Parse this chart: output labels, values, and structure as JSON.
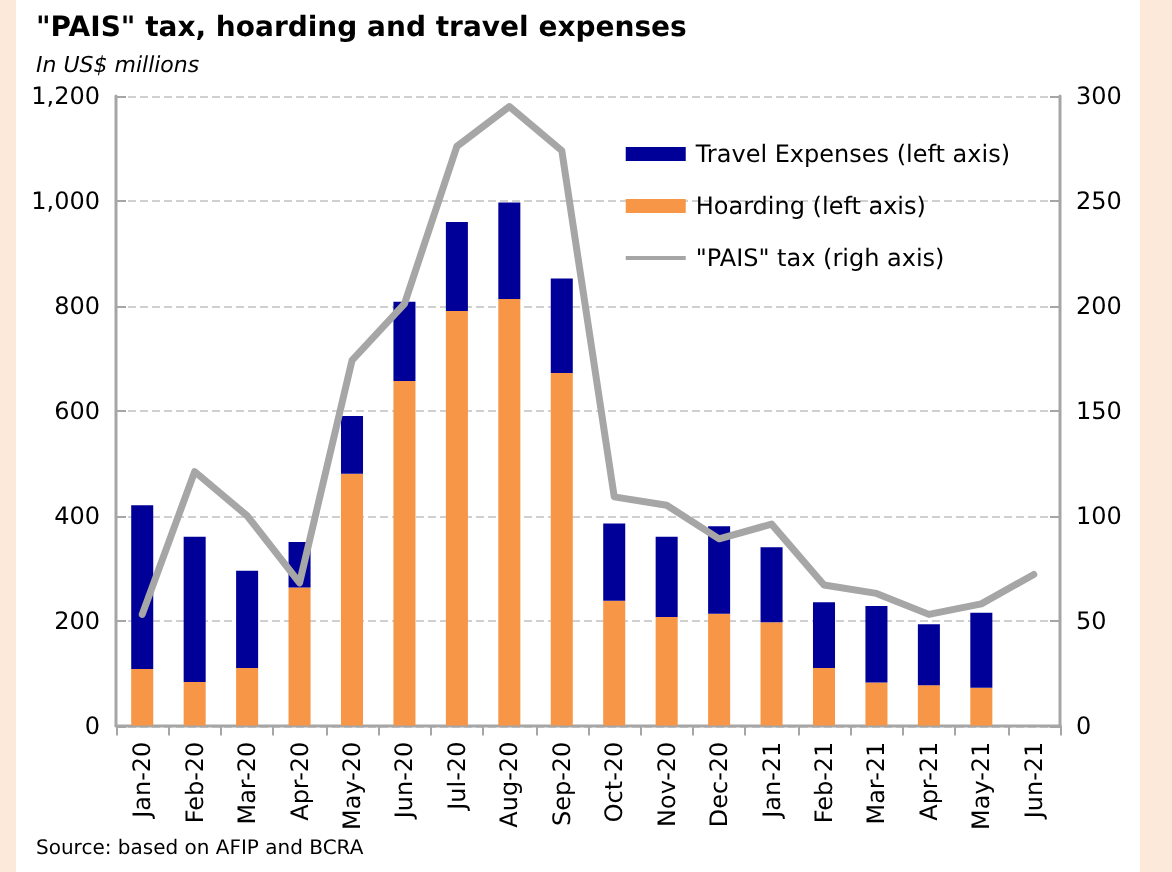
{
  "chart_data": {
    "type": "bar",
    "title": "\"PAIS\" tax, hoarding and travel expenses",
    "subtitle": "In US$ millions",
    "categories": [
      "Jan-20",
      "Feb-20",
      "Mar-20",
      "Apr-20",
      "May-20",
      "Jun-20",
      "Jul-20",
      "Aug-20",
      "Sep-20",
      "Oct-20",
      "Nov-20",
      "Dec-20",
      "Jan-21",
      "Feb-21",
      "Mar-21",
      "Apr-21",
      "May-21",
      "Jun-21"
    ],
    "stacked": true,
    "series": [
      {
        "name": "Hoarding (left axis)",
        "color": "#f79646",
        "values": [
          108,
          83,
          110,
          263,
          480,
          657,
          790,
          813,
          672,
          238,
          207,
          213,
          197,
          110,
          82,
          77,
          72,
          null
        ]
      },
      {
        "name": "Travel Expenses (left axis)",
        "color": "#000099",
        "values": [
          312,
          277,
          185,
          87,
          110,
          151,
          170,
          184,
          180,
          147,
          153,
          167,
          143,
          125,
          146,
          116,
          143,
          null
        ]
      },
      {
        "name": "\"PAIS\" tax (righ axis)",
        "type": "line",
        "axis": "y2",
        "color": "#a6a6a6",
        "marker": "none",
        "values": [
          53,
          121,
          100,
          68,
          174,
          201,
          276,
          295,
          274,
          109,
          105,
          89,
          96,
          67,
          63,
          53,
          58,
          72
        ]
      }
    ],
    "ylim": [
      0,
      1200
    ],
    "yticks": [
      0,
      {
        "value": 200,
        "label": "200"
      },
      {
        "value": 400,
        "label": "400"
      },
      {
        "value": 600,
        "label": "600"
      },
      {
        "value": 800,
        "label": "800"
      },
      {
        "value": 1000,
        "label": "1,000"
      },
      {
        "value": 1200,
        "label": "1,200"
      }
    ],
    "y2lim": [
      0,
      300
    ],
    "y2ticks": [
      0,
      50,
      100,
      150,
      200,
      250,
      300
    ],
    "grid": "y",
    "legend": "top right",
    "annotations": [
      "Source: based on AFIP and BCRA"
    ]
  }
}
